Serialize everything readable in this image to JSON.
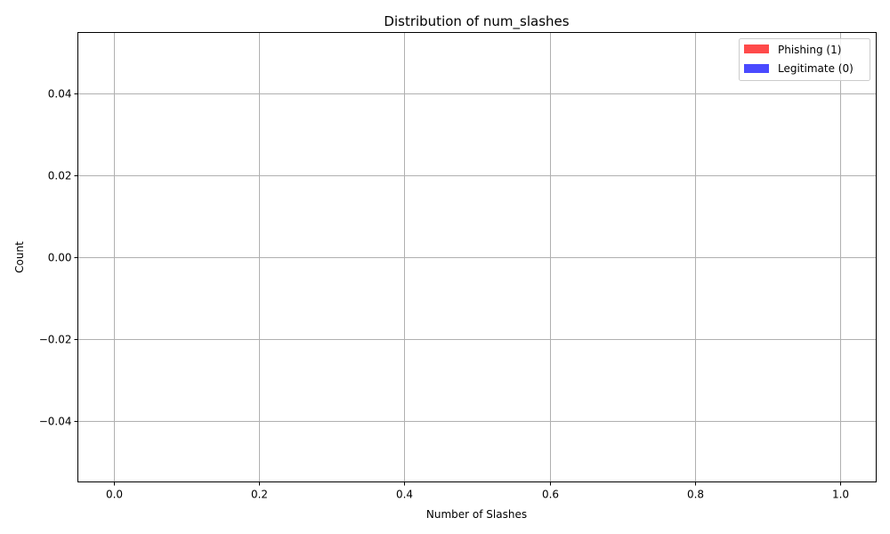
{
  "chart_data": {
    "type": "bar",
    "title": "Distribution of num_slashes",
    "xlabel": "Number of Slashes",
    "ylabel": "Count",
    "xlim": [
      -0.05,
      1.05
    ],
    "ylim": [
      -0.055,
      0.055
    ],
    "xticks": [
      0.0,
      0.2,
      0.4,
      0.6,
      0.8,
      1.0
    ],
    "xtick_labels": [
      "0.0",
      "0.2",
      "0.4",
      "0.6",
      "0.8",
      "1.0"
    ],
    "yticks": [
      -0.04,
      -0.02,
      0.0,
      0.02,
      0.04
    ],
    "ytick_labels": [
      "−0.04",
      "−0.02",
      "0.00",
      "0.02",
      "0.04"
    ],
    "grid": true,
    "legend_position": "top-right",
    "series": [
      {
        "name": "Phishing (1)",
        "color": "#ff4a4a",
        "values": []
      },
      {
        "name": "Legitimate (0)",
        "color": "#4a4aff",
        "values": []
      }
    ]
  }
}
